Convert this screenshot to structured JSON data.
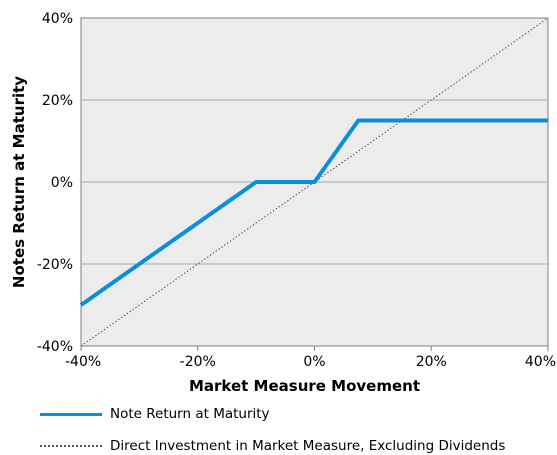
{
  "chart_data": {
    "type": "line",
    "xlabel": "Market Measure Movement",
    "ylabel": "Notes Return at Maturity",
    "xlim": [
      -40,
      40
    ],
    "ylim": [
      -40,
      40
    ],
    "x_ticks": [
      "-40%",
      "-20%",
      "0%",
      "20%",
      "40%"
    ],
    "y_ticks": [
      "40%",
      "20%",
      "0%",
      "-20%",
      "-40%"
    ],
    "grid": "horizontal",
    "legend_position": "bottom",
    "series": [
      {
        "name": "Note Return at Maturity",
        "color": "#0a8fdc",
        "style": "solid",
        "x": [
          -40,
          -10,
          0,
          7.5,
          40
        ],
        "y": [
          -30,
          0,
          0,
          15,
          15
        ]
      },
      {
        "name": "Direct Investment in Market Measure, Excluding Dividends",
        "color": "#555555",
        "style": "dotted",
        "x": [
          -40,
          40
        ],
        "y": [
          -40,
          40
        ]
      }
    ]
  }
}
